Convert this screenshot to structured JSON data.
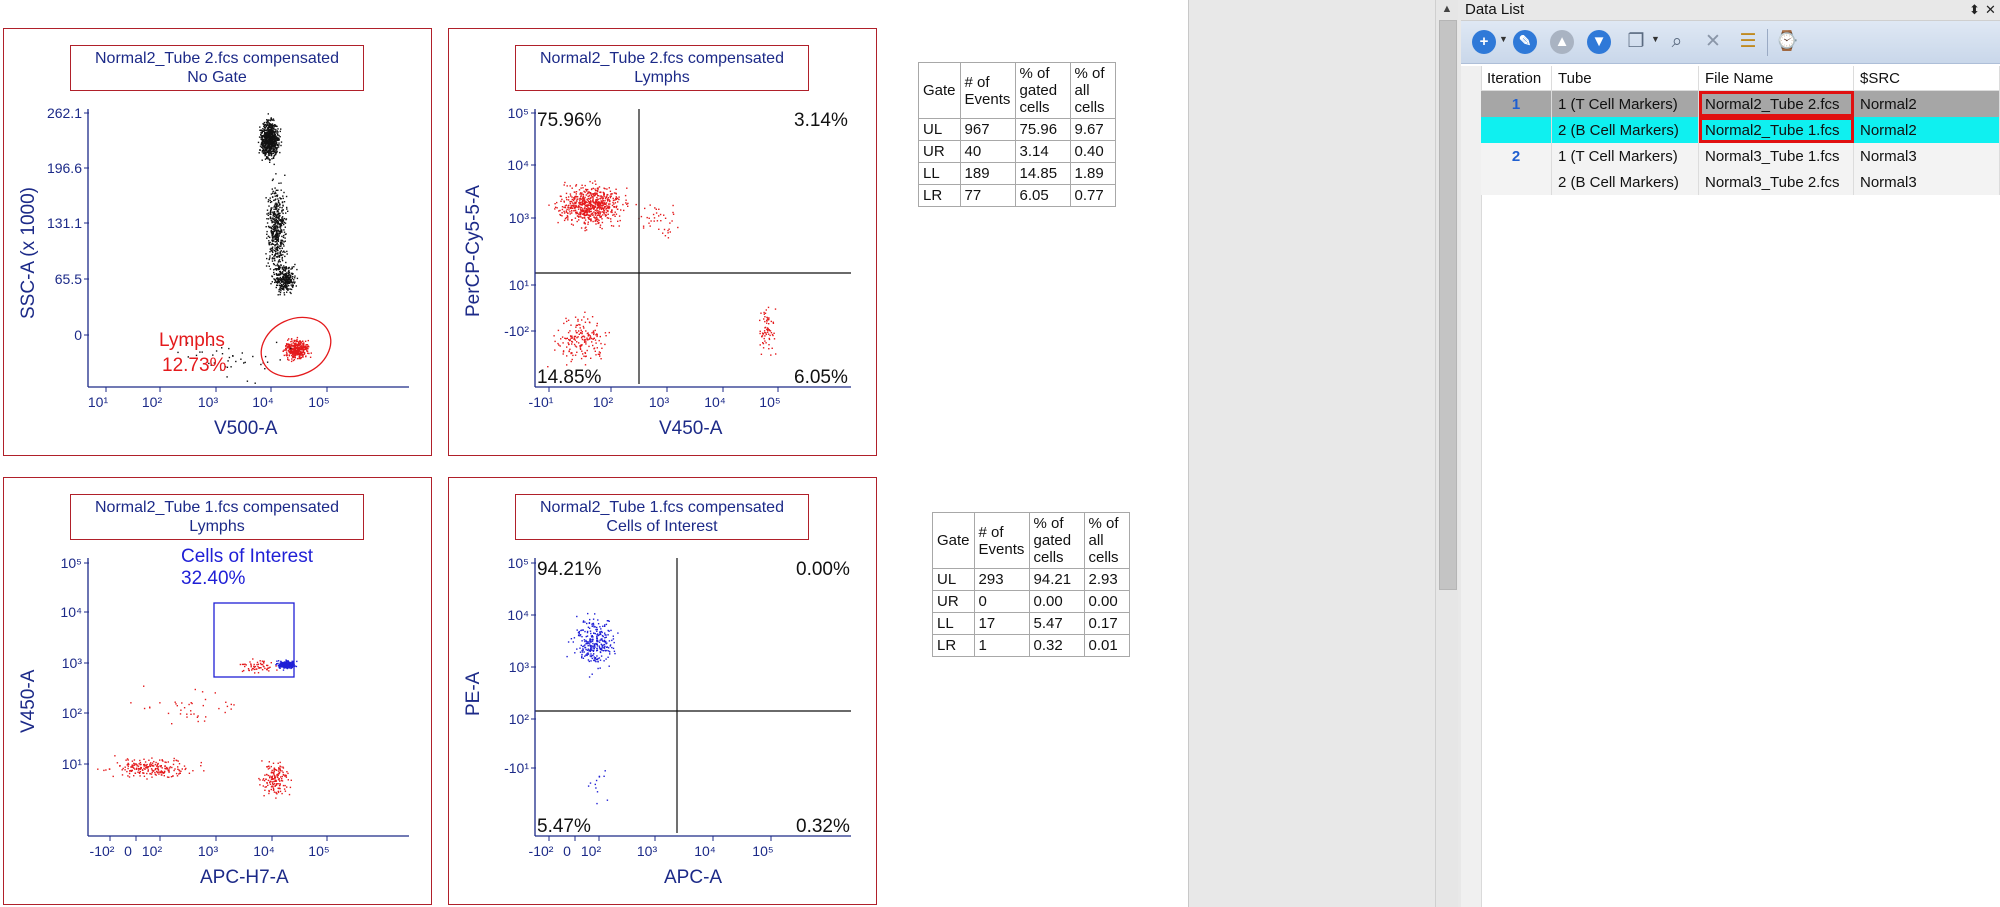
{
  "plots": [
    {
      "title_line1": "Normal2_Tube 2.fcs compensated",
      "title_line2": "No Gate",
      "xlabel": "V500-A",
      "ylabel": "SSC-A (x 1000)",
      "xticks": [
        "10¹",
        "10²",
        "10³",
        "10⁴",
        "10⁵"
      ],
      "yticks": [
        "262.1",
        "196.6",
        "131.1",
        "65.5",
        "0"
      ],
      "gate_name": "Lymphs",
      "gate_pct": "12.73%"
    },
    {
      "title_line1": "Normal2_Tube 2.fcs compensated",
      "title_line2": "Lymphs",
      "xlabel": "V450-A",
      "ylabel": "PerCP-Cy5-5-A",
      "xticks": [
        "-10¹",
        "10²",
        "10³",
        "10⁴",
        "10⁵"
      ],
      "yticks": [
        "10⁵",
        "10⁴",
        "10³",
        "10¹",
        "-10²"
      ],
      "quads": {
        "UL": "75.96%",
        "UR": "3.14%",
        "LL": "14.85%",
        "LR": "6.05%"
      }
    },
    {
      "title_line1": "Normal2_Tube 1.fcs compensated",
      "title_line2": "Lymphs",
      "xlabel": "APC-H7-A",
      "ylabel": "V450-A",
      "xticks": [
        "-10²",
        "0",
        "10²",
        "10³",
        "10⁴",
        "10⁵"
      ],
      "yticks": [
        "10⁵",
        "10⁴",
        "10³",
        "10²",
        "10¹"
      ],
      "gate_name": "Cells of Interest",
      "gate_pct": "32.40%"
    },
    {
      "title_line1": "Normal2_Tube 1.fcs compensated",
      "title_line2": "Cells of Interest",
      "xlabel": "APC-A",
      "ylabel": "PE-A",
      "xticks": [
        "-10²",
        "0",
        "10²",
        "10³",
        "10⁴",
        "10⁵"
      ],
      "yticks": [
        "10⁵",
        "10⁴",
        "10³",
        "10²",
        "-10¹"
      ],
      "quads": {
        "UL": "94.21%",
        "UR": "0.00%",
        "LL": "5.47%",
        "LR": "0.32%"
      }
    }
  ],
  "stats_tables": [
    {
      "headers": [
        "Gate",
        "# of Events",
        "% of gated cells",
        "% of all cells"
      ],
      "rows": [
        [
          "UL",
          "967",
          "75.96",
          "9.67"
        ],
        [
          "UR",
          "40",
          "3.14",
          "0.40"
        ],
        [
          "LL",
          "189",
          "14.85",
          "1.89"
        ],
        [
          "LR",
          "77",
          "6.05",
          "0.77"
        ]
      ]
    },
    {
      "headers": [
        "Gate",
        "# of Events",
        "% of gated cells",
        "% of all cells"
      ],
      "rows": [
        [
          "UL",
          "293",
          "94.21",
          "2.93"
        ],
        [
          "UR",
          "0",
          "0.00",
          "0.00"
        ],
        [
          "LL",
          "17",
          "5.47",
          "0.17"
        ],
        [
          "LR",
          "1",
          "0.32",
          "0.01"
        ]
      ]
    }
  ],
  "data_list": {
    "title": "Data List",
    "pin_glyph": "⬍",
    "close_glyph": "✕",
    "columns": [
      "Iteration",
      "Tube",
      "File Name",
      "$SRC"
    ],
    "rows": [
      {
        "iteration": "1",
        "tube": "1 (T Cell Markers)",
        "file": "Normal2_Tube 2.fcs",
        "src": "Normal2"
      },
      {
        "iteration": "",
        "tube": "2 (B Cell Markers)",
        "file": "Normal2_Tube 1.fcs",
        "src": "Normal2"
      },
      {
        "iteration": "2",
        "tube": "1 (T Cell Markers)",
        "file": "Normal3_Tube 1.fcs",
        "src": "Normal3"
      },
      {
        "iteration": "",
        "tube": "2 (B Cell Markers)",
        "file": "Normal3_Tube 2.fcs",
        "src": "Normal3"
      }
    ],
    "toolbar_icons": [
      "add-icon",
      "wrench-icon",
      "move-up-icon",
      "move-down-icon",
      "copy-icon",
      "search-icon",
      "delete-icon",
      "properties-icon",
      "clipboard-icon"
    ]
  },
  "colors": {
    "gate_red": "#e41a1c",
    "gate_blue": "#1f1fd6",
    "axis_navy": "#1c2a88",
    "selected_row": "#00f0f0",
    "active_row": "#a6a6a6"
  }
}
